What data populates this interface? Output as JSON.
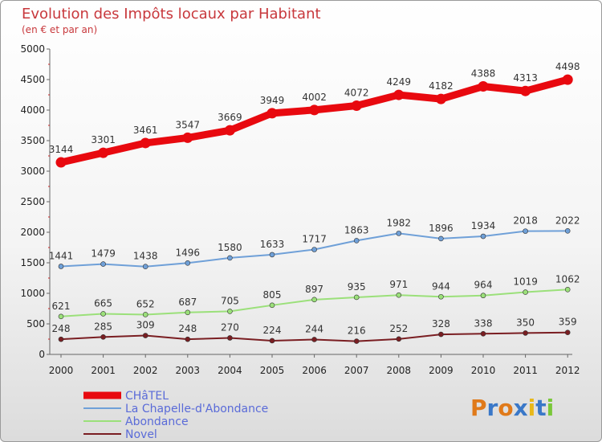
{
  "chart_data": {
    "type": "line",
    "title": "Evolution des Impôts locaux par Habitant",
    "subtitle": "(en € et par an)",
    "categories": [
      "2000",
      "2001",
      "2002",
      "2003",
      "2004",
      "2005",
      "2006",
      "2007",
      "2008",
      "2009",
      "2010",
      "2011",
      "2012"
    ],
    "ylim": [
      0,
      5000
    ],
    "yticks": [
      0,
      500,
      1000,
      1500,
      2000,
      2500,
      3000,
      3500,
      4000,
      4500,
      5000
    ],
    "grid": false,
    "legend_position": "bottom-left",
    "series": [
      {
        "name": "CHâTEL",
        "color": "#e8090f",
        "bold": true,
        "values": [
          3144,
          3301,
          3461,
          3547,
          3669,
          3949,
          4002,
          4072,
          4249,
          4182,
          4388,
          4313,
          4498
        ]
      },
      {
        "name": "La Chapelle-d'Abondance",
        "color": "#6fa0d8",
        "bold": false,
        "values": [
          1441,
          1479,
          1438,
          1496,
          1580,
          1633,
          1717,
          1863,
          1982,
          1896,
          1934,
          2018,
          2022
        ]
      },
      {
        "name": "Abondance",
        "color": "#9be07a",
        "bold": false,
        "values": [
          621,
          665,
          652,
          687,
          705,
          805,
          897,
          935,
          971,
          944,
          964,
          1019,
          1062
        ]
      },
      {
        "name": "Novel",
        "color": "#7a1e22",
        "bold": false,
        "values": [
          248,
          285,
          309,
          248,
          270,
          224,
          244,
          216,
          252,
          328,
          338,
          350,
          359
        ]
      }
    ]
  },
  "logo": {
    "text": "Proxiti",
    "letters": [
      {
        "ch": "P",
        "color": "#e07a1a"
      },
      {
        "ch": "r",
        "color": "#3a78c8"
      },
      {
        "ch": "o",
        "color": "#e07a1a"
      },
      {
        "ch": "x",
        "color": "#3a78c8"
      },
      {
        "ch": "i",
        "color": "#e8b81a"
      },
      {
        "ch": "t",
        "color": "#3a78c8"
      },
      {
        "ch": "i",
        "color": "#7ac83a"
      }
    ]
  }
}
